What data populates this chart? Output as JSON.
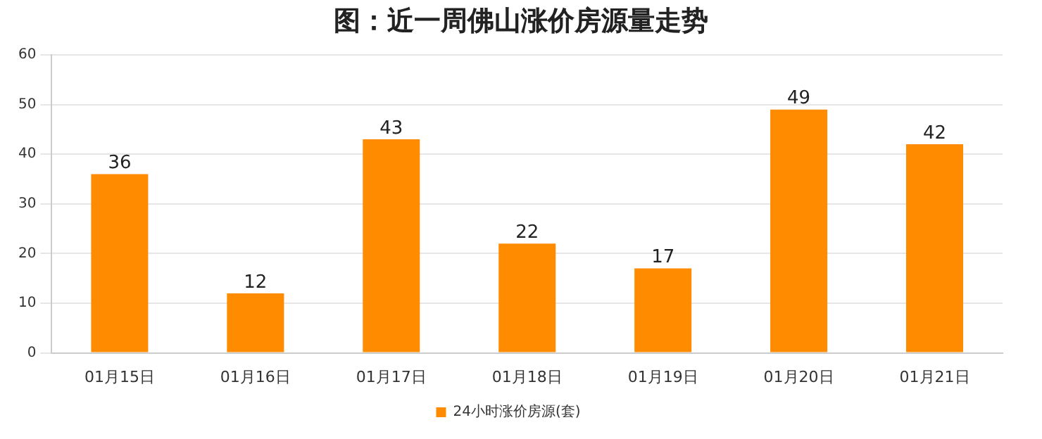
{
  "chart_data": {
    "type": "bar",
    "title": "图：近一周佛山涨价房源量走势",
    "categories": [
      "01月15日",
      "01月16日",
      "01月17日",
      "01月18日",
      "01月19日",
      "01月20日",
      "01月21日"
    ],
    "series": [
      {
        "name": "24小时涨价房源(套)",
        "color": "#ff8c00",
        "values": [
          36,
          12,
          43,
          22,
          17,
          49,
          42
        ]
      }
    ],
    "ylim": [
      0,
      60
    ],
    "yticks": [
      0,
      10,
      20,
      30,
      40,
      50,
      60
    ],
    "grid": "y",
    "legend": "bottom",
    "data_labels": true
  }
}
